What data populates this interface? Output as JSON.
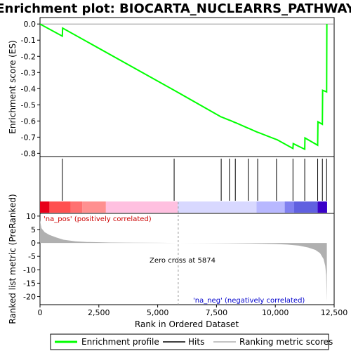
{
  "chart_data": {
    "type": "line",
    "title": "Enrichment plot: BIOCARTA_NUCLEARRS_PATHWAY",
    "top_panel": {
      "ylabel": "Enrichment score (ES)",
      "ylim": [
        -0.82,
        0.04
      ],
      "yticks": [
        0.0,
        -0.1,
        -0.2,
        -0.3,
        -0.4,
        -0.5,
        -0.6,
        -0.7,
        -0.8
      ],
      "ytick_labels": [
        "0.0",
        "-0.1",
        "-0.2",
        "-0.3",
        "-0.4",
        "-0.5",
        "-0.6",
        "-0.7",
        "-0.8"
      ],
      "series": [
        {
          "name": "Enrichment profile",
          "color": "#00ff00",
          "x": [
            0,
            950,
            960,
            5700,
            7700,
            7710,
            8050,
            8060,
            8300,
            8310,
            8850,
            8860,
            9250,
            9260,
            10050,
            10060,
            10750,
            10760,
            11250,
            11260,
            11800,
            11810,
            12000,
            12010,
            12180,
            12190
          ],
          "y": [
            0.0,
            -0.075,
            -0.025,
            -0.41,
            -0.575,
            -0.575,
            -0.595,
            -0.595,
            -0.61,
            -0.61,
            -0.645,
            -0.645,
            -0.67,
            -0.67,
            -0.715,
            -0.715,
            -0.77,
            -0.74,
            -0.775,
            -0.705,
            -0.75,
            -0.605,
            -0.62,
            -0.41,
            -0.42,
            0.0
          ]
        }
      ]
    },
    "hits_panel": {
      "hit_positions": [
        950,
        5700,
        7700,
        8050,
        8300,
        8850,
        9250,
        10050,
        10750,
        11250,
        11800,
        12000,
        12180
      ],
      "hit_color": "#000000"
    },
    "bottom_panel": {
      "ylabel": "Ranked list metric (PreRanked)",
      "ylim": [
        -23,
        11
      ],
      "yticks": [
        10,
        5,
        0,
        -5,
        -10,
        -15,
        -20
      ],
      "ytick_labels": [
        "10",
        "5",
        "0",
        "-5",
        "-10",
        "-15",
        "-20"
      ],
      "metric_x": [
        0,
        60,
        200,
        400,
        700,
        1000,
        1500,
        2000,
        3000,
        4000,
        5000,
        5874,
        7000,
        8000,
        9000,
        10000,
        10500,
        11000,
        11400,
        11700,
        11900,
        12050,
        12120,
        12160,
        12190
      ],
      "metric_y": [
        8.5,
        5.5,
        4.0,
        3.0,
        2.0,
        1.2,
        0.6,
        0.35,
        0.15,
        0.08,
        0.03,
        0.0,
        -0.05,
        -0.12,
        -0.22,
        -0.4,
        -0.6,
        -1.0,
        -1.7,
        -2.6,
        -3.8,
        -6.0,
        -8.5,
        -12.0,
        -22.0
      ],
      "zero_cross_text": "Zero cross at 5874",
      "zero_cross": 5874,
      "pos_label": "'na_pos' (positively correlated)",
      "neg_label": "'na_neg' (negatively correlated)",
      "pos_color": "#cc0000",
      "neg_color": "#0000cc",
      "fill_color": "#b0b0b0"
    },
    "xlabel": "Rank in Ordered Dataset",
    "xlim": [
      0,
      12500
    ],
    "xticks": [
      0,
      2500,
      5000,
      7500,
      10000,
      12500
    ],
    "xtick_labels": [
      "0",
      "2,500",
      "5,000",
      "7,500",
      "10,000",
      "12,500"
    ],
    "n_genes": 12200,
    "color_bar": [
      {
        "start": 0,
        "end": 400,
        "color": "#e8001a"
      },
      {
        "start": 400,
        "end": 1300,
        "color": "#ff5050"
      },
      {
        "start": 1300,
        "end": 1800,
        "color": "#ff7070"
      },
      {
        "start": 1800,
        "end": 2800,
        "color": "#ff9090"
      },
      {
        "start": 2800,
        "end": 5850,
        "color": "#ffc0e0"
      },
      {
        "start": 5850,
        "end": 9200,
        "color": "#d8d8ff"
      },
      {
        "start": 9200,
        "end": 10400,
        "color": "#b8b8ff"
      },
      {
        "start": 10400,
        "end": 10800,
        "color": "#8080f0"
      },
      {
        "start": 10800,
        "end": 11800,
        "color": "#6060e0"
      },
      {
        "start": 11800,
        "end": 12200,
        "color": "#3a00c8"
      }
    ],
    "legend": {
      "placement": "bottom",
      "entries": [
        {
          "label": "Enrichment profile",
          "color": "#00ff00"
        },
        {
          "label": "Hits",
          "color": "#000000"
        },
        {
          "label": "Ranking metric scores",
          "color": "#b0b0b0"
        }
      ]
    }
  }
}
